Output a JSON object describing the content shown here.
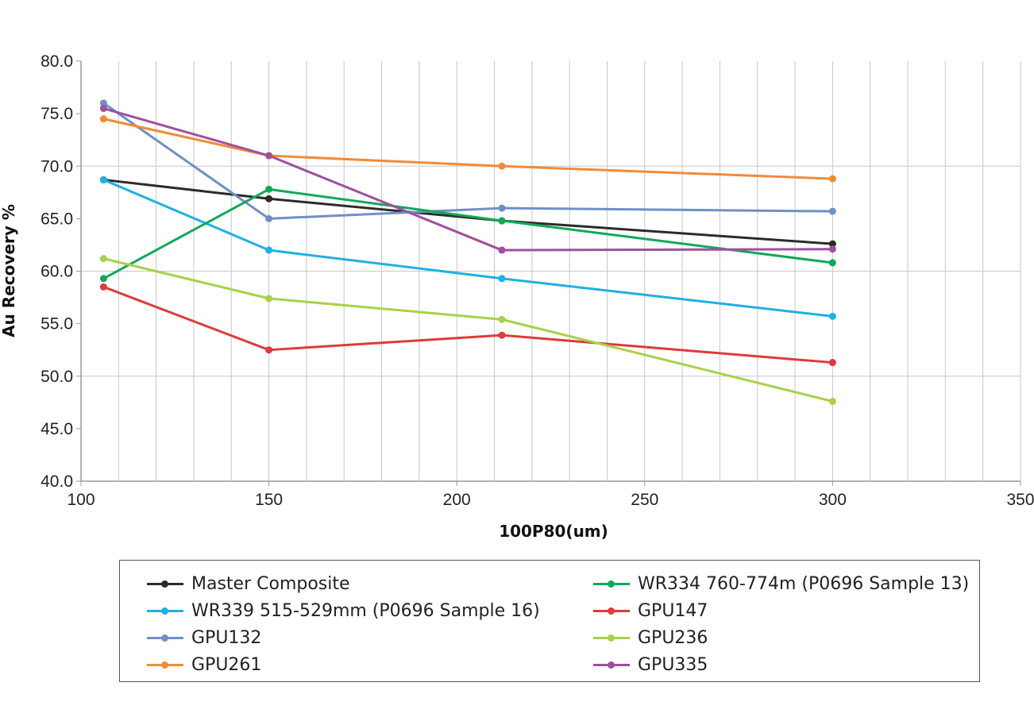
{
  "chart_data": {
    "type": "line",
    "title": "",
    "xlabel": "100P80(um)",
    "ylabel": "Au Recovery %",
    "xlim": [
      100,
      350
    ],
    "ylim": [
      40,
      80
    ],
    "x_ticks": [
      100,
      150,
      200,
      250,
      300,
      350
    ],
    "x_tick_labels": [
      "100",
      "150",
      "200",
      "250",
      "300",
      "350"
    ],
    "y_ticks": [
      40,
      45,
      50,
      55,
      60,
      65,
      70,
      75,
      80
    ],
    "y_tick_labels": [
      "40.0",
      "45.0",
      "50.0",
      "55.0",
      "60.0",
      "65.0",
      "70.0",
      "75.0",
      "80.0"
    ],
    "grid": true,
    "legend_position": "bottom",
    "x": [
      106,
      150,
      212,
      300
    ],
    "series": [
      {
        "name": "Master Composite",
        "color": "#2b2b2b",
        "values": [
          68.7,
          66.9,
          64.8,
          62.6
        ]
      },
      {
        "name": "WR339 515-529mm (P0696 Sample 16)",
        "color": "#1fb0e6",
        "values": [
          68.7,
          62.0,
          59.3,
          55.7
        ]
      },
      {
        "name": "GPU132",
        "color": "#6f8fc9",
        "values": [
          76.0,
          65.0,
          66.0,
          65.7
        ]
      },
      {
        "name": "GPU261",
        "color": "#f08c36",
        "values": [
          74.5,
          71.0,
          70.0,
          68.8
        ]
      },
      {
        "name": "WR334 760-774m (P0696 Sample 13)",
        "color": "#12a85a",
        "values": [
          59.3,
          67.8,
          64.8,
          60.8
        ]
      },
      {
        "name": "GPU147",
        "color": "#e03a3a",
        "values": [
          58.5,
          52.5,
          53.9,
          51.3
        ]
      },
      {
        "name": "GPU236",
        "color": "#a8d14a",
        "values": [
          61.2,
          57.4,
          55.4,
          47.6
        ]
      },
      {
        "name": "GPU335",
        "color": "#a0509c",
        "values": [
          75.5,
          71.0,
          62.0,
          62.1
        ]
      }
    ]
  }
}
